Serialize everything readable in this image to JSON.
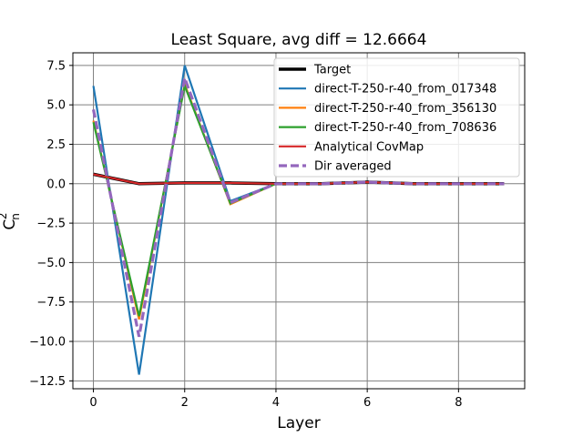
{
  "chart_data": {
    "type": "line",
    "title": "Least Square, avg diff = 12.6664",
    "xlabel": "Layer",
    "ylabel": "C",
    "ylabel_sub": "n",
    "ylabel_sup": "2",
    "xlim": [
      -0.45,
      9.45
    ],
    "ylim": [
      -13.0,
      8.3
    ],
    "x": [
      0,
      1,
      2,
      3,
      4,
      5,
      6,
      7,
      8,
      9
    ],
    "xticks": [
      0,
      2,
      4,
      6,
      8
    ],
    "xtick_labels": [
      "0",
      "2",
      "4",
      "6",
      "8"
    ],
    "yticks": [
      7.5,
      5.0,
      2.5,
      0.0,
      -2.5,
      -5.0,
      -7.5,
      -10.0,
      -12.5
    ],
    "ytick_labels": [
      "7.5",
      "5.0",
      "2.5",
      "0.0",
      "−2.5",
      "−5.0",
      "−7.5",
      "−10.0",
      "−12.5"
    ],
    "grid": true,
    "legend_position": "top-right",
    "series": [
      {
        "name": "Target",
        "color": "#000000",
        "style": "solid",
        "values": [
          0.6,
          0.0,
          0.05,
          0.05,
          0.0,
          0.0,
          0.1,
          0.0,
          0.0,
          0.0
        ]
      },
      {
        "name": "direct-T-250-r-40_from_017348",
        "color": "#1f77b4",
        "style": "solid",
        "values": [
          6.2,
          -12.1,
          7.5,
          -1.1,
          0.0,
          0.0,
          0.1,
          0.0,
          0.0,
          0.0
        ]
      },
      {
        "name": "direct-T-250-r-40_from_356130",
        "color": "#ff7f0e",
        "style": "solid",
        "values": [
          4.0,
          -8.6,
          6.3,
          -1.3,
          0.0,
          0.0,
          0.1,
          0.0,
          0.0,
          0.0
        ]
      },
      {
        "name": "direct-T-250-r-40_from_708636",
        "color": "#2ca02c",
        "style": "solid",
        "values": [
          3.9,
          -8.4,
          6.2,
          -1.25,
          0.0,
          0.0,
          0.1,
          0.0,
          0.0,
          0.0
        ]
      },
      {
        "name": "Analytical CovMap",
        "color": "#d62728",
        "style": "solid",
        "values": [
          0.6,
          0.0,
          0.05,
          0.05,
          0.0,
          0.0,
          0.1,
          0.0,
          0.0,
          0.0
        ]
      },
      {
        "name": "Dir averaged",
        "color": "#9467bd",
        "style": "dashed",
        "values": [
          4.7,
          -9.7,
          6.7,
          -1.2,
          0.0,
          0.0,
          0.1,
          0.0,
          0.0,
          0.0
        ]
      }
    ]
  }
}
